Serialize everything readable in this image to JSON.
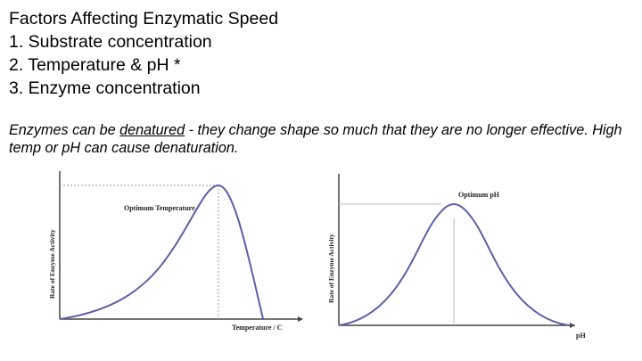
{
  "heading": {
    "title": "Factors Affecting Enzymatic Speed",
    "items": [
      "1. Substrate concentration",
      "2. Temperature & pH *",
      "3. Enzyme concentration"
    ]
  },
  "note": {
    "part1": "Enzymes can be ",
    "underlined": "denatured",
    "part2": " - they change shape so much that they are no longer effective. High temp or pH can cause denaturation."
  },
  "graphs": {
    "temperature": {
      "y_label": "Rate of Enzyme Activity",
      "x_label": "Temperature / C",
      "peak_label": "Optimum Temperature"
    },
    "ph": {
      "y_label": "Rate of Enzyme Activity",
      "x_label": "pH",
      "peak_label": "Optimum pH"
    }
  },
  "colors": {
    "curve": "#5b5fa6",
    "axis": "#444444",
    "guide": "#999999"
  }
}
